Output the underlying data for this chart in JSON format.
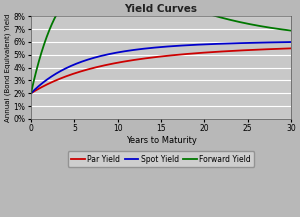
{
  "title": "Yield Curves",
  "xlabel": "Years to Maturity",
  "ylabel": "Annual (Bond Equivalent) Yield",
  "fig_bg_color": "#b8b8b8",
  "plot_bg_color": "#c8c8c8",
  "xlim": [
    0,
    30
  ],
  "ylim": [
    0.0,
    0.08
  ],
  "yticks": [
    0.0,
    0.01,
    0.02,
    0.03,
    0.04,
    0.05,
    0.06,
    0.07,
    0.08
  ],
  "xticks": [
    0,
    5,
    10,
    15,
    20,
    25,
    30
  ],
  "par_color": "#cc0000",
  "spot_color": "#0000cc",
  "forward_color": "#007700",
  "legend_labels": [
    "Par Yield",
    "Spot Yield",
    "Forward Yield"
  ],
  "ns_par": {
    "beta0": 0.062,
    "beta1": -0.042,
    "beta2": 0.0,
    "tau": 5.0
  },
  "ns_spot": {
    "beta0": 0.063,
    "beta1": -0.043,
    "beta2": 0.025,
    "tau": 5.0
  },
  "ns_forward": {
    "beta0": 0.062,
    "beta1": -0.042,
    "beta2": 0.16,
    "tau": 6.5
  }
}
